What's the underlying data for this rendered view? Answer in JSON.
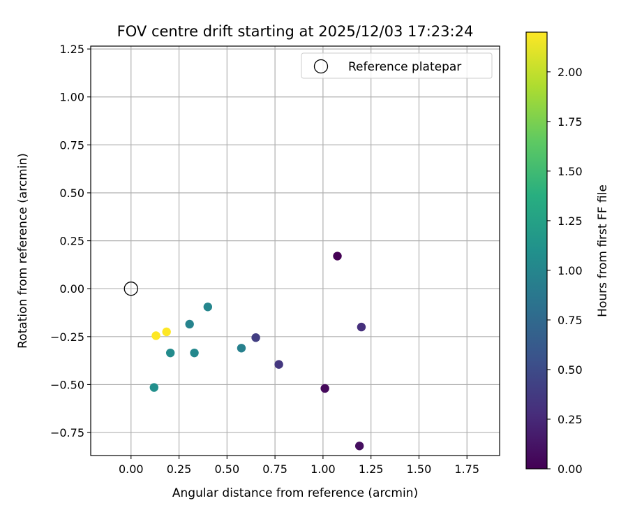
{
  "chart_data": {
    "type": "scatter",
    "title": "FOV centre drift starting at 2025/12/03 17:23:24",
    "xlabel": "Angular distance from reference (arcmin)",
    "ylabel": "Rotation from reference (arcmin)",
    "xlim": [
      -0.21,
      1.92
    ],
    "ylim": [
      -0.87,
      1.265
    ],
    "xticks": [
      0.0,
      0.25,
      0.5,
      0.75,
      1.0,
      1.25,
      1.5,
      1.75
    ],
    "xtick_labels": [
      "0.00",
      "0.25",
      "0.50",
      "0.75",
      "1.00",
      "1.25",
      "1.50",
      "1.75"
    ],
    "yticks": [
      1.25,
      1.0,
      0.75,
      0.5,
      0.25,
      0.0,
      -0.25,
      -0.5,
      -0.75
    ],
    "ytick_labels": [
      "1.25",
      "1.00",
      "0.75",
      "0.50",
      "0.25",
      "0.00",
      "−0.25",
      "−0.50",
      "−0.75"
    ],
    "grid": true,
    "legend": {
      "position": "top-right",
      "label": "Reference platepar"
    },
    "reference_point": {
      "x": 0.0,
      "y": 0.0
    },
    "colorbar": {
      "label": "Hours from first FF file",
      "range": [
        0.0,
        2.2
      ],
      "ticks": [
        0.0,
        0.25,
        0.5,
        0.75,
        1.0,
        1.25,
        1.5,
        1.75,
        2.0
      ],
      "tick_labels": [
        "0.00",
        "0.25",
        "0.50",
        "0.75",
        "1.00",
        "1.25",
        "1.50",
        "1.75",
        "2.00"
      ],
      "colormap": "viridis"
    },
    "points": [
      {
        "x": 1.075,
        "y": 0.17,
        "hours": 0.0
      },
      {
        "x": 1.01,
        "y": -0.52,
        "hours": 0.05
      },
      {
        "x": 1.19,
        "y": -0.82,
        "hours": 0.08
      },
      {
        "x": 1.2,
        "y": -0.2,
        "hours": 0.3
      },
      {
        "x": 0.77,
        "y": -0.395,
        "hours": 0.35
      },
      {
        "x": 0.65,
        "y": -0.255,
        "hours": 0.4
      },
      {
        "x": 0.575,
        "y": -0.31,
        "hours": 0.95
      },
      {
        "x": 0.4,
        "y": -0.095,
        "hours": 1.0
      },
      {
        "x": 0.305,
        "y": -0.185,
        "hours": 0.98
      },
      {
        "x": 0.33,
        "y": -0.335,
        "hours": 1.02
      },
      {
        "x": 0.205,
        "y": -0.335,
        "hours": 1.05
      },
      {
        "x": 0.12,
        "y": -0.515,
        "hours": 1.08
      },
      {
        "x": 0.185,
        "y": -0.225,
        "hours": 2.2
      },
      {
        "x": 0.13,
        "y": -0.245,
        "hours": 2.2
      }
    ]
  }
}
